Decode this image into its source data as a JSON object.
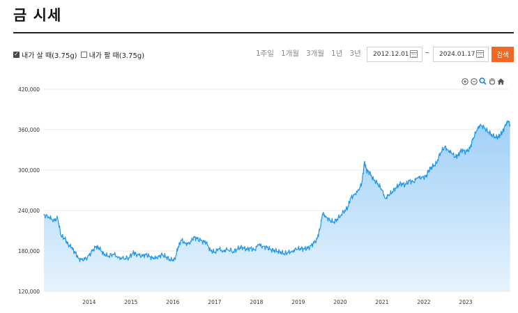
{
  "page": {
    "title": "금 시세"
  },
  "filters": {
    "buy_label": "내가 살 때(3.75g)",
    "buy_checked": true,
    "sell_label": "내가 팔 때(3.75g)",
    "sell_checked": false
  },
  "periods": [
    "1주일",
    "1개월",
    "3개월",
    "1년",
    "3년"
  ],
  "date_range": {
    "start": "2012.12.01",
    "separator": "~",
    "end": "2024.01.17"
  },
  "search_button": "검색",
  "toolbar_icons": [
    "zoom-in-icon",
    "zoom-out-icon",
    "zoom-magnifier-icon",
    "pan-hand-icon",
    "home-reset-icon"
  ],
  "colors": {
    "accent": "#f26722",
    "line": "#2196e8",
    "area_top": "#9fd0f7",
    "area_bottom": "#e6f3fd",
    "grid": "#e8e8e8"
  },
  "chart_data": {
    "type": "area",
    "title": "",
    "xlabel": "",
    "ylabel": "",
    "series": [
      {
        "values": [
          [
            2012.92,
            234000
          ],
          [
            2013.05,
            229000
          ],
          [
            2013.15,
            226000
          ],
          [
            2013.25,
            228000
          ],
          [
            2013.33,
            203000
          ],
          [
            2013.42,
            198000
          ],
          [
            2013.5,
            190000
          ],
          [
            2013.58,
            185000
          ],
          [
            2013.66,
            178000
          ],
          [
            2013.75,
            169000
          ],
          [
            2013.85,
            166000
          ],
          [
            2013.96,
            171000
          ],
          [
            2014.08,
            180000
          ],
          [
            2014.17,
            187000
          ],
          [
            2014.25,
            183000
          ],
          [
            2014.35,
            176000
          ],
          [
            2014.45,
            172000
          ],
          [
            2014.58,
            175000
          ],
          [
            2014.7,
            171000
          ],
          [
            2014.83,
            168000
          ],
          [
            2014.95,
            170000
          ],
          [
            2015.05,
            177000
          ],
          [
            2015.12,
            176000
          ],
          [
            2015.25,
            172000
          ],
          [
            2015.35,
            175000
          ],
          [
            2015.45,
            172000
          ],
          [
            2015.55,
            168000
          ],
          [
            2015.65,
            172000
          ],
          [
            2015.75,
            174000
          ],
          [
            2015.85,
            171000
          ],
          [
            2015.95,
            166000
          ],
          [
            2016.05,
            168000
          ],
          [
            2016.12,
            184000
          ],
          [
            2016.2,
            196000
          ],
          [
            2016.3,
            192000
          ],
          [
            2016.4,
            190000
          ],
          [
            2016.5,
            201000
          ],
          [
            2016.58,
            198000
          ],
          [
            2016.7,
            195000
          ],
          [
            2016.8,
            192000
          ],
          [
            2016.9,
            181000
          ],
          [
            2017.0,
            178000
          ],
          [
            2017.1,
            183000
          ],
          [
            2017.2,
            180000
          ],
          [
            2017.3,
            182000
          ],
          [
            2017.45,
            179000
          ],
          [
            2017.55,
            183000
          ],
          [
            2017.65,
            186000
          ],
          [
            2017.75,
            182000
          ],
          [
            2017.85,
            184000
          ],
          [
            2017.95,
            182000
          ],
          [
            2018.05,
            189000
          ],
          [
            2018.15,
            187000
          ],
          [
            2018.25,
            185000
          ],
          [
            2018.35,
            182000
          ],
          [
            2018.45,
            180000
          ],
          [
            2018.55,
            179000
          ],
          [
            2018.65,
            176000
          ],
          [
            2018.75,
            177000
          ],
          [
            2018.85,
            180000
          ],
          [
            2018.95,
            182000
          ],
          [
            2019.05,
            184000
          ],
          [
            2019.15,
            183000
          ],
          [
            2019.25,
            185000
          ],
          [
            2019.35,
            190000
          ],
          [
            2019.45,
            198000
          ],
          [
            2019.52,
            214000
          ],
          [
            2019.58,
            235000
          ],
          [
            2019.65,
            232000
          ],
          [
            2019.75,
            225000
          ],
          [
            2019.85,
            223000
          ],
          [
            2019.95,
            228000
          ],
          [
            2020.08,
            238000
          ],
          [
            2020.18,
            244000
          ],
          [
            2020.25,
            258000
          ],
          [
            2020.35,
            265000
          ],
          [
            2020.45,
            270000
          ],
          [
            2020.52,
            282000
          ],
          [
            2020.58,
            312000
          ],
          [
            2020.63,
            300000
          ],
          [
            2020.7,
            296000
          ],
          [
            2020.8,
            286000
          ],
          [
            2020.9,
            280000
          ],
          [
            2021.0,
            270000
          ],
          [
            2021.08,
            258000
          ],
          [
            2021.15,
            262000
          ],
          [
            2021.25,
            268000
          ],
          [
            2021.35,
            275000
          ],
          [
            2021.45,
            280000
          ],
          [
            2021.55,
            278000
          ],
          [
            2021.65,
            284000
          ],
          [
            2021.75,
            283000
          ],
          [
            2021.85,
            288000
          ],
          [
            2021.95,
            290000
          ],
          [
            2022.05,
            290000
          ],
          [
            2022.12,
            300000
          ],
          [
            2022.2,
            305000
          ],
          [
            2022.3,
            310000
          ],
          [
            2022.4,
            326000
          ],
          [
            2022.5,
            334000
          ],
          [
            2022.58,
            330000
          ],
          [
            2022.66,
            325000
          ],
          [
            2022.75,
            320000
          ],
          [
            2022.82,
            322000
          ],
          [
            2022.9,
            330000
          ],
          [
            2023.0,
            327000
          ],
          [
            2023.1,
            332000
          ],
          [
            2023.18,
            348000
          ],
          [
            2023.28,
            360000
          ],
          [
            2023.35,
            368000
          ],
          [
            2023.45,
            362000
          ],
          [
            2023.55,
            356000
          ],
          [
            2023.65,
            351000
          ],
          [
            2023.75,
            348000
          ],
          [
            2023.82,
            352000
          ],
          [
            2023.88,
            356000
          ],
          [
            2023.95,
            368000
          ],
          [
            2024.02,
            372000
          ],
          [
            2024.06,
            367000
          ]
        ]
      }
    ],
    "x_ticks": [
      "2014",
      "2015",
      "2016",
      "2017",
      "2018",
      "2019",
      "2020",
      "2021",
      "2022",
      "2023"
    ],
    "y_ticks": [
      "420,000",
      "360,000",
      "300,000",
      "240,000",
      "180,000",
      "120,000"
    ],
    "xlim": [
      2012.92,
      2024.05
    ],
    "ylim": [
      120000,
      420000
    ],
    "grid": true,
    "legend": "none"
  }
}
